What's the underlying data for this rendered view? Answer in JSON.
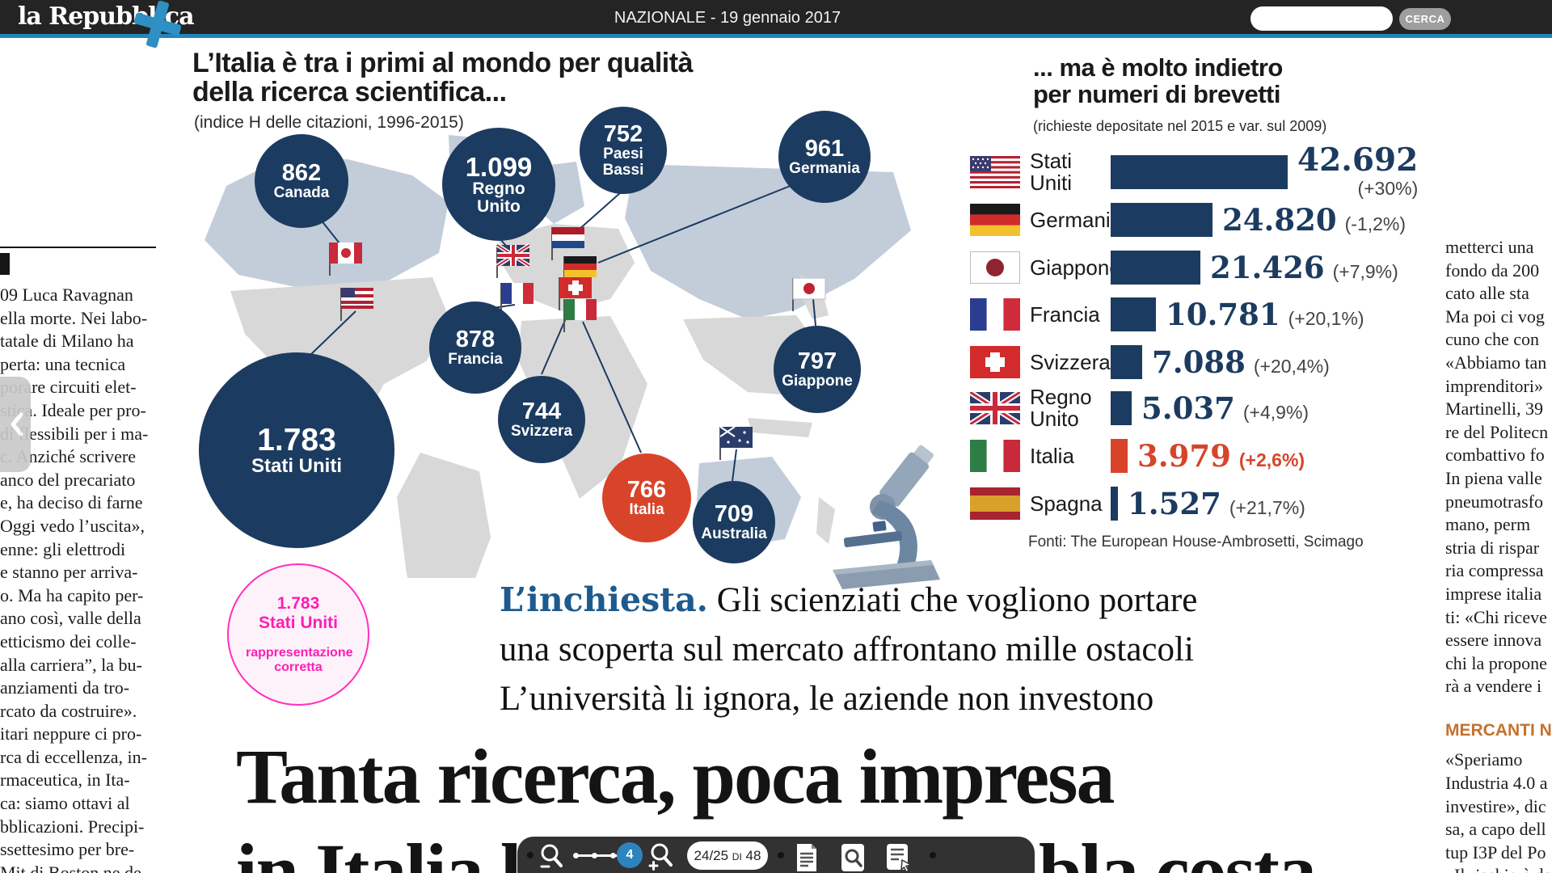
{
  "top_bar": {
    "logo": "la Repubblica",
    "edition": "NAZIONALE  -  19 gennaio 2017",
    "search_button": "CERCA"
  },
  "left_column": {
    "lines": [
      "09 Luca Ravagnan",
      "ella morte. Nei labo-",
      "tatale di Milano ha",
      "perta: una tecnica",
      "porare circuiti elet-",
      "stica. Ideale per pro-",
      "di flessibili per i ma-",
      "c. Anziché scrivere",
      "anco del precariato",
      "e, ha deciso di farne",
      "Oggi vedo l’uscita»,",
      "enne: gli elettrodi",
      "e stanno per arriva-",
      "o. Ma ha capito per-",
      "ano così, valle della",
      "etticismo dei colle-",
      "alla carriera”, la bu-",
      "anziamenti da tro-",
      "rcato da costruire».",
      "itari neppure ci pro-",
      "rca di eccellenza, in-",
      "rmaceutica, in Ita-",
      "ca: siamo ottavi al",
      "bblicazioni. Precipi-",
      "ssettesimo per bre-",
      "Mit di Boston ne de-"
    ]
  },
  "right_column": {
    "lines": [
      "metterci una",
      "fondo da 200",
      "cato alle sta",
      "Ma poi ci vog",
      "cuno che con",
      "«Abbiamo tan",
      "imprenditori»",
      "Martinelli, 39",
      "re del Politecn",
      "combattivo fo",
      "In piena valle",
      "pneumotrasfo",
      "mano, perm",
      "stria di rispar",
      "ria compressa",
      "imprese italia",
      "ti: «Chi riceve",
      "essere innova",
      "chi la propone",
      "rà a vendere i"
    ],
    "section_header": "MERCANTI N",
    "lines2": [
      "«Speriamo",
      "Industria 4.0 a",
      "investire», dic",
      "sa, a capo dell",
      "tup I3P del Po",
      "«Il rischio è da"
    ]
  },
  "research_chart": {
    "title_line1": "L’Italia è tra i primi al mondo per qualità",
    "title_line2": "della ricerca scientifica...",
    "subtitle": "(indice H delle citazioni, 1996-2015)",
    "bubbles": [
      {
        "value": "862",
        "label": "Canada"
      },
      {
        "value": "1.099",
        "label": "Regno Unito"
      },
      {
        "value": "752",
        "label": "Paesi Bassi"
      },
      {
        "value": "961",
        "label": "Germania"
      },
      {
        "value": "878",
        "label": "Francia"
      },
      {
        "value": "744",
        "label": "Svizzera"
      },
      {
        "value": "1.783",
        "label": "Stati Uniti"
      },
      {
        "value": "766",
        "label": "Italia"
      },
      {
        "value": "797",
        "label": "Giappone"
      },
      {
        "value": "709",
        "label": "Australia"
      }
    ]
  },
  "annotation": {
    "value": "1.783",
    "label": "Stati Uniti",
    "note": "rappresentazione corretta"
  },
  "patent_chart": {
    "title_line1": "... ma è molto indietro",
    "title_line2": "per numeri di brevetti",
    "subtitle": "(richieste depositate nel 2015 e var. sul 2009)",
    "rows": [
      {
        "country": "Stati Uniti",
        "value": "42.692",
        "change": "(+30%)"
      },
      {
        "country": "Germania",
        "value": "24.820",
        "change": "(-1,2%)"
      },
      {
        "country": "Giappone",
        "value": "21.426",
        "change": "(+7,9%)"
      },
      {
        "country": "Francia",
        "value": "10.781",
        "change": "(+20,1%)"
      },
      {
        "country": "Svizzera",
        "value": "7.088",
        "change": "(+20,4%)"
      },
      {
        "country": "Regno Unito",
        "value": "5.037",
        "change": "(+4,9%)"
      },
      {
        "country": "Italia",
        "value": "3.979",
        "change": "(+2,6%)"
      },
      {
        "country": "Spagna",
        "value": "1.527",
        "change": "(+21,7%)"
      }
    ],
    "source": "Fonti: The European House-Ambrosetti, Scimago"
  },
  "inchiesta": {
    "kicker": "L’inchiesta.",
    "line1": "Gli scienziati che vogliono portare",
    "line2": "una scoperta sul mercato affrontano mille ostacoli",
    "line3": "L’università li ignora, le aziende non investono"
  },
  "headline": {
    "line1": "Tanta ricerca, poca impresa",
    "line2_left": "in Italia l’i",
    "line2_right": "bla costa"
  },
  "toolbar": {
    "zoom_level": "4",
    "page_indicator": "24/25 di 48"
  },
  "colors": {
    "navy": "#1c3b60",
    "italy_red": "#d8442a",
    "annotation_magenta": "#ff2fc0",
    "inchiesta_blue": "#1d5b8e",
    "topbar_blue": "#2187ba",
    "mercanti_orange": "#c4722c"
  },
  "chart_data": [
    {
      "type": "bubble-map",
      "title": "L’Italia è tra i primi al mondo per qualità della ricerca scientifica...",
      "subtitle": "(indice H delle citazioni, 1996-2015)",
      "categories": [
        "Stati Uniti",
        "Regno Unito",
        "Germania",
        "Francia",
        "Canada",
        "Giappone",
        "Italia",
        "Paesi Bassi",
        "Svizzera",
        "Australia"
      ],
      "values": [
        1783,
        1099,
        961,
        878,
        862,
        797,
        766,
        752,
        744,
        709
      ],
      "highlight": "Italia"
    },
    {
      "type": "bar",
      "title": "... ma è molto indietro per numeri di brevetti",
      "subtitle": "(richieste depositate nel 2015 e var. sul 2009)",
      "categories": [
        "Stati Uniti",
        "Germania",
        "Giappone",
        "Francia",
        "Svizzera",
        "Regno Unito",
        "Italia",
        "Spagna"
      ],
      "values": [
        42692,
        24820,
        21426,
        10781,
        7088,
        5037,
        3979,
        1527
      ],
      "changes": [
        "+30%",
        "-1,2%",
        "+7,9%",
        "+20,1%",
        "+20,4%",
        "+4,9%",
        "+2,6%",
        "+21,7%"
      ],
      "highlight": "Italia",
      "source": "Fonti: The European House-Ambrosetti, Scimago",
      "legend_position": "none",
      "grid": false
    }
  ]
}
